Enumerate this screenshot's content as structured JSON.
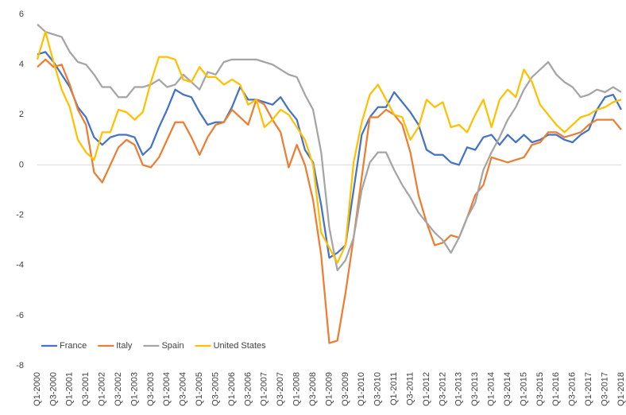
{
  "chart_data": {
    "type": "line",
    "categories": [
      "Q1-2000",
      null,
      "Q3-2000",
      null,
      "Q1-2001",
      null,
      "Q3-2001",
      null,
      "Q1-2002",
      null,
      "Q3-2002",
      null,
      "Q1-2003",
      null,
      "Q3-2003",
      null,
      "Q1-2004",
      null,
      "Q3-2004",
      null,
      "Q1-2005",
      null,
      "Q3-2005",
      null,
      "Q1-2006",
      null,
      "Q3-2006",
      null,
      "Q1-2007",
      null,
      "Q3-2007",
      null,
      "Q1-2008",
      null,
      "Q3-2008",
      null,
      "Q1-2009",
      null,
      "Q3-2009",
      null,
      "Q1-2010",
      null,
      "Q3-2010",
      null,
      "Q1-2011",
      null,
      "Q3-2011",
      null,
      "Q1-2012",
      null,
      "Q3-2012",
      null,
      "Q1-2013",
      null,
      "Q3-2013",
      null,
      "Q1-2014",
      null,
      "Q3-2014",
      null,
      "Q1-2015",
      null,
      "Q3-2015",
      null,
      "Q1-2016",
      null,
      "Q3-2016",
      null,
      "Q1-2017",
      null,
      "Q3-2017",
      null,
      "Q1-2018"
    ],
    "series": [
      {
        "name": "France",
        "color": "#4472c4",
        "values": [
          4.4,
          4.5,
          4.1,
          3.6,
          3.1,
          2.3,
          1.9,
          1.1,
          0.8,
          1.1,
          1.2,
          1.2,
          1.1,
          0.4,
          0.7,
          1.5,
          2.2,
          3.0,
          2.8,
          2.7,
          2.1,
          1.6,
          1.7,
          1.7,
          2.3,
          3.1,
          2.6,
          2.6,
          2.5,
          2.4,
          2.7,
          2.2,
          1.8,
          0.6,
          0.1,
          -1.6,
          -3.7,
          -3.5,
          -3.2,
          -1.0,
          1.2,
          1.9,
          2.3,
          2.3,
          2.9,
          2.5,
          2.1,
          1.6,
          0.6,
          0.4,
          0.4,
          0.1,
          0.0,
          0.7,
          0.6,
          1.1,
          1.2,
          0.8,
          1.2,
          0.9,
          1.2,
          0.9,
          1.0,
          1.2,
          1.2,
          1.0,
          0.9,
          1.2,
          1.4,
          2.2,
          2.7,
          2.8,
          2.2
        ]
      },
      {
        "name": "Italy",
        "color": "#ed7d31",
        "values": [
          3.9,
          4.2,
          3.9,
          4.0,
          3.2,
          2.2,
          1.6,
          -0.3,
          -0.7,
          0.0,
          0.7,
          1.0,
          0.8,
          0.0,
          -0.1,
          0.3,
          1.0,
          1.7,
          1.7,
          1.1,
          0.4,
          1.1,
          1.6,
          1.7,
          2.2,
          1.9,
          1.6,
          2.6,
          2.4,
          1.8,
          1.3,
          -0.1,
          0.8,
          0.0,
          -1.4,
          -3.6,
          -7.1,
          -7.0,
          -5.1,
          -2.9,
          -0.5,
          1.9,
          1.9,
          2.2,
          2.0,
          1.6,
          0.5,
          -1.2,
          -2.3,
          -3.2,
          -3.1,
          -2.8,
          -2.9,
          -2.1,
          -1.2,
          -0.8,
          0.3,
          0.2,
          0.1,
          0.2,
          0.3,
          0.8,
          0.9,
          1.3,
          1.3,
          1.1,
          1.2,
          1.3,
          1.6,
          1.8,
          1.8,
          1.8,
          1.4
        ]
      },
      {
        "name": "Spain",
        "color": "#a5a5a5",
        "values": [
          5.6,
          5.3,
          5.2,
          5.1,
          4.5,
          4.1,
          4.0,
          3.6,
          3.1,
          3.1,
          2.7,
          2.7,
          3.1,
          3.1,
          3.2,
          3.4,
          3.1,
          3.2,
          3.6,
          3.3,
          3.0,
          3.7,
          3.6,
          4.1,
          4.2,
          4.2,
          4.2,
          4.2,
          4.1,
          4.0,
          3.8,
          3.6,
          3.5,
          2.8,
          2.2,
          0.5,
          -2.5,
          -4.2,
          -3.8,
          -2.9,
          -1.0,
          0.1,
          0.5,
          0.5,
          -0.2,
          -0.8,
          -1.3,
          -1.9,
          -2.3,
          -2.7,
          -3.0,
          -3.5,
          -2.9,
          -2.1,
          -1.5,
          -0.2,
          0.5,
          1.1,
          1.8,
          2.3,
          3.0,
          3.5,
          3.8,
          4.1,
          3.6,
          3.3,
          3.1,
          2.7,
          2.8,
          3.0,
          2.9,
          3.1,
          2.9
        ]
      },
      {
        "name": "United States",
        "color": "#ffc000",
        "values": [
          4.2,
          5.3,
          4.1,
          3.0,
          2.3,
          1.0,
          0.5,
          0.2,
          1.3,
          1.3,
          2.2,
          2.1,
          1.8,
          2.1,
          3.3,
          4.3,
          4.3,
          4.2,
          3.4,
          3.3,
          3.9,
          3.5,
          3.5,
          3.2,
          3.4,
          3.2,
          2.4,
          2.6,
          1.5,
          1.8,
          2.2,
          2.0,
          1.5,
          1.0,
          0.0,
          -2.7,
          -3.3,
          -3.9,
          -3.2,
          0.1,
          1.7,
          2.8,
          3.2,
          2.6,
          2.0,
          1.9,
          1.0,
          1.5,
          2.6,
          2.3,
          2.5,
          1.5,
          1.6,
          1.3,
          2.0,
          2.6,
          1.5,
          2.6,
          3.0,
          2.7,
          3.8,
          3.3,
          2.4,
          2.0,
          1.6,
          1.3,
          1.6,
          1.9,
          2.0,
          2.2,
          2.3,
          2.5,
          2.6
        ]
      }
    ],
    "ylim": [
      -8,
      6
    ],
    "yticks": [
      -8,
      -6,
      -4,
      -2,
      0,
      2,
      4,
      6
    ],
    "legend": "lower-left"
  }
}
